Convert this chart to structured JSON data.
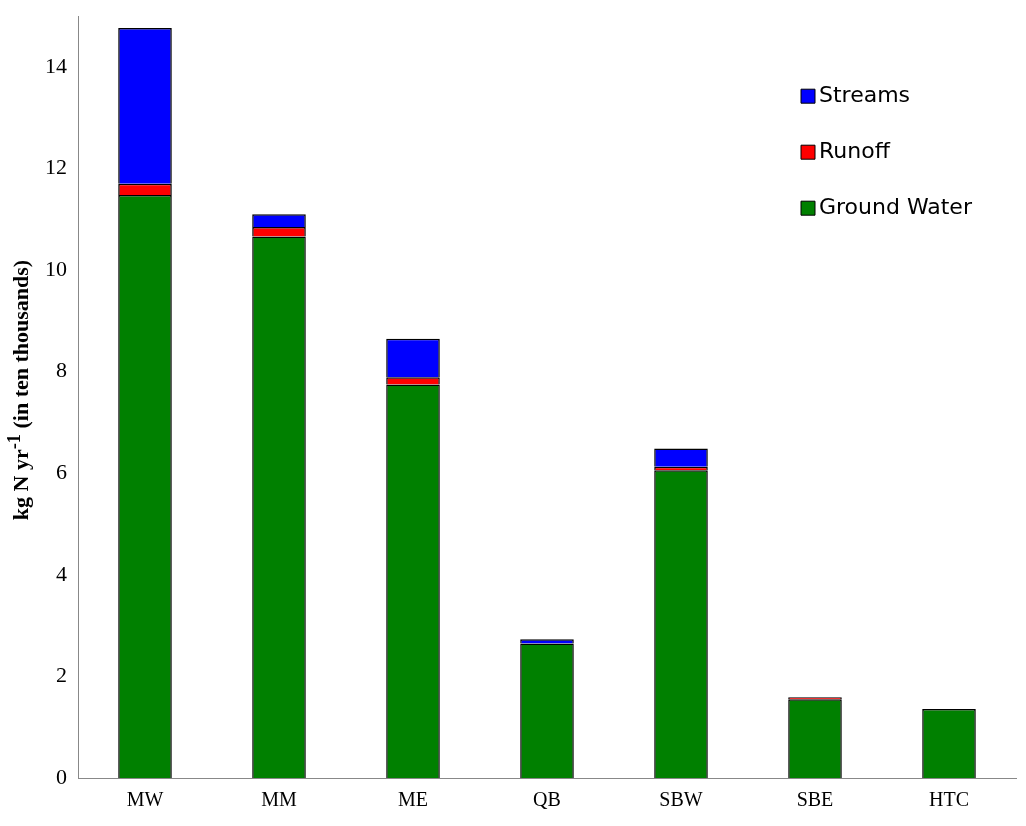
{
  "chart_data": {
    "type": "bar",
    "stacked": true,
    "ylabel": "kg N yr$^{-1}$ (in ten thousands)",
    "categories": [
      "MW",
      "MM",
      "ME",
      "QB",
      "SBW",
      "SBE",
      "HTC"
    ],
    "series": [
      {
        "name": "Ground Water",
        "color": "#008000",
        "values": [
          11.48,
          10.66,
          7.75,
          2.65,
          6.06,
          1.55,
          1.36
        ]
      },
      {
        "name": "Runoff",
        "color": "#ff0000",
        "values": [
          0.22,
          0.19,
          0.14,
          null,
          0.07,
          0.04,
          null
        ]
      },
      {
        "name": "Streams",
        "color": "#0000ff",
        "values": [
          3.07,
          0.25,
          0.76,
          0.08,
          0.36,
          null,
          null
        ]
      }
    ],
    "ylim": [
      0,
      15
    ],
    "yticks": [
      0,
      2,
      4,
      6,
      8,
      10,
      12,
      14
    ],
    "grid": false,
    "legend": "top right"
  }
}
